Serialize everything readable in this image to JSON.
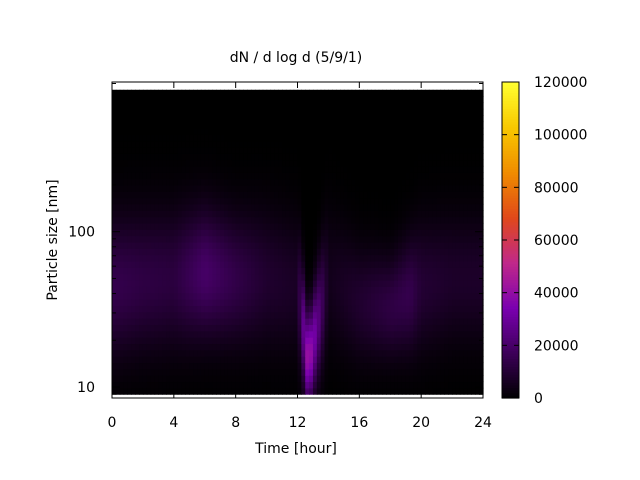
{
  "chart_data": {
    "type": "heatmap",
    "title": "dN / d log d (5/9/1)",
    "xlabel": "Time [hour]",
    "ylabel": "Particle size [nm]",
    "xlim": [
      0,
      24
    ],
    "x_ticks": [
      0,
      4,
      8,
      12,
      16,
      20,
      24
    ],
    "y_scale": "log",
    "ylim": [
      8.5,
      920
    ],
    "y_ticks": [
      10,
      100
    ],
    "colorbar": {
      "range": [
        0,
        120000
      ],
      "ticks": [
        0,
        20000,
        40000,
        60000,
        80000,
        100000,
        120000
      ],
      "palette": [
        "#000000",
        "#3c0058",
        "#7a00b0",
        "#c0288a",
        "#e0481a",
        "#f08c00",
        "#f8c800",
        "#ffff30"
      ]
    },
    "size_range_nm": [
      9,
      820
    ],
    "values": [
      {
        "time_h": 0,
        "mode_nm": 45,
        "peak": 15000,
        "width": 0.3
      },
      {
        "time_h": 2,
        "mode_nm": 48,
        "peak": 13000,
        "width": 0.3
      },
      {
        "time_h": 4,
        "mode_nm": 50,
        "peak": 12000,
        "width": 0.3
      },
      {
        "time_h": 6,
        "mode_nm": 55,
        "peak": 20000,
        "width": 0.28
      },
      {
        "time_h": 8,
        "mode_nm": 50,
        "peak": 14000,
        "width": 0.28
      },
      {
        "time_h": 10,
        "mode_nm": 50,
        "peak": 9000,
        "width": 0.3
      },
      {
        "time_h": 12,
        "mode_nm": 45,
        "peak": 7000,
        "width": 0.3
      },
      {
        "time_h": 12.7,
        "mode_nm": 14,
        "peak": 45000,
        "width": 0.18
      },
      {
        "time_h": 14,
        "mode_nm": 50,
        "peak": 5000,
        "width": 0.3
      },
      {
        "time_h": 16,
        "mode_nm": 35,
        "peak": 9000,
        "width": 0.25
      },
      {
        "time_h": 18,
        "mode_nm": 33,
        "peak": 13000,
        "width": 0.22
      },
      {
        "time_h": 19.3,
        "mode_nm": 40,
        "peak": 15000,
        "width": 0.25
      },
      {
        "time_h": 20,
        "mode_nm": 45,
        "peak": 10000,
        "width": 0.28
      },
      {
        "time_h": 22,
        "mode_nm": 50,
        "peak": 8000,
        "width": 0.28
      },
      {
        "time_h": 24,
        "mode_nm": 50,
        "peak": 8000,
        "width": 0.28
      }
    ]
  }
}
